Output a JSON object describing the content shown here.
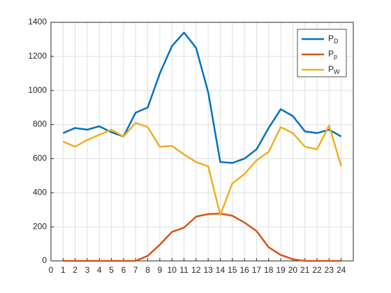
{
  "chart_data": {
    "type": "line",
    "x": [
      1,
      2,
      3,
      4,
      5,
      6,
      7,
      8,
      9,
      10,
      11,
      12,
      13,
      14,
      15,
      16,
      17,
      18,
      19,
      20,
      21,
      22,
      23,
      24
    ],
    "series": [
      {
        "name": "PD",
        "color": "#0072bd",
        "values": [
          750,
          780,
          770,
          790,
          755,
          730,
          870,
          900,
          1100,
          1260,
          1340,
          1250,
          990,
          580,
          575,
          600,
          655,
          780,
          890,
          850,
          760,
          750,
          770,
          730
        ]
      },
      {
        "name": "Pp",
        "color": "#d95319",
        "values": [
          0,
          0,
          0,
          0,
          0,
          0,
          0,
          30,
          95,
          170,
          195,
          260,
          275,
          278,
          265,
          225,
          175,
          80,
          35,
          10,
          0,
          0,
          0,
          0
        ]
      },
      {
        "name": "PW",
        "color": "#edb120",
        "values": [
          700,
          670,
          710,
          740,
          770,
          730,
          810,
          785,
          670,
          675,
          625,
          580,
          555,
          270,
          455,
          510,
          590,
          640,
          785,
          750,
          670,
          655,
          795,
          555
        ]
      }
    ],
    "xlim": [
      0,
      25
    ],
    "xticks": [
      0,
      1,
      2,
      3,
      4,
      5,
      6,
      7,
      8,
      9,
      10,
      11,
      12,
      13,
      14,
      15,
      16,
      17,
      18,
      19,
      20,
      21,
      22,
      23,
      24
    ],
    "ylim": [
      0,
      1400
    ],
    "yticks": [
      0,
      200,
      400,
      600,
      800,
      1000,
      1200,
      1400
    ],
    "grid": true,
    "legend": "northeast"
  }
}
